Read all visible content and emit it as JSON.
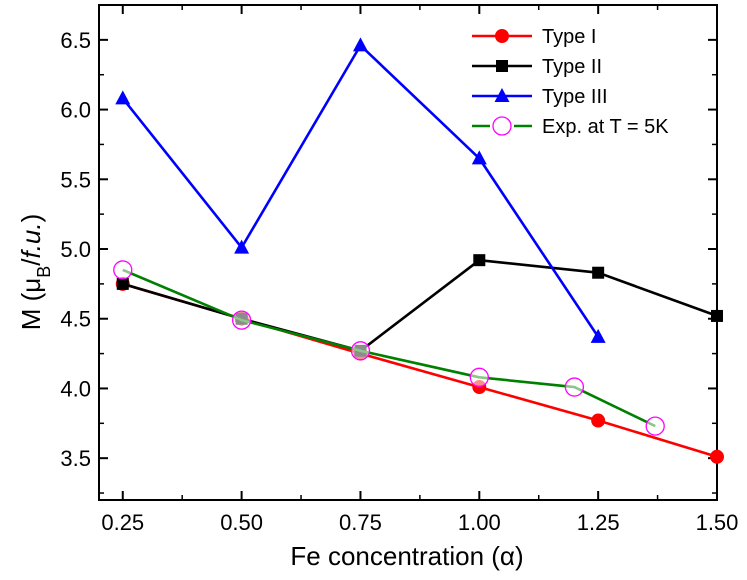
{
  "chart_data": {
    "type": "line",
    "xlabel": "Fe concentration (α)",
    "ylabel": {
      "prefix": "M (μ",
      "sub": "B",
      "mid": "/",
      "italic": "f.u.",
      "suffix": ")"
    },
    "xlim": [
      0.2,
      1.5
    ],
    "ylim": [
      3.2,
      6.75
    ],
    "xticks": [
      0.25,
      0.5,
      0.75,
      1.0,
      1.25,
      1.5
    ],
    "xtick_labels": [
      "0.25",
      "0.50",
      "0.75",
      "1.00",
      "1.25",
      "1.50"
    ],
    "yticks": [
      3.5,
      4.0,
      4.5,
      5.0,
      5.5,
      6.0,
      6.5
    ],
    "ytick_labels": [
      "3.5",
      "4.0",
      "4.5",
      "5.0",
      "5.5",
      "6.0",
      "6.5"
    ],
    "legend_position": "top-right",
    "series": [
      {
        "name": "Type I",
        "color": "#ff0000",
        "marker": "circle",
        "x": [
          0.25,
          0.5,
          0.75,
          1.0,
          1.25,
          1.5
        ],
        "values": [
          4.75,
          4.5,
          4.25,
          4.01,
          3.77,
          3.51
        ]
      },
      {
        "name": "Type II",
        "color": "#000000",
        "marker": "square",
        "x": [
          0.25,
          0.5,
          0.75,
          1.0,
          1.25,
          1.5
        ],
        "values": [
          4.75,
          4.5,
          4.27,
          4.92,
          4.83,
          4.52
        ]
      },
      {
        "name": "Type III",
        "color": "#0000ff",
        "marker": "triangle",
        "x": [
          0.25,
          0.5,
          0.75,
          1.0,
          1.25
        ],
        "values": [
          6.08,
          5.01,
          6.46,
          5.65,
          4.37
        ]
      },
      {
        "name": "Exp. at T = 5K",
        "color": "#008000",
        "marker_color": "#ff00ff",
        "marker": "open-circle",
        "x": [
          0.25,
          0.5,
          0.75,
          1.0,
          1.2,
          1.37
        ],
        "values": [
          4.85,
          4.49,
          4.27,
          4.08,
          4.01,
          3.73
        ]
      }
    ]
  }
}
